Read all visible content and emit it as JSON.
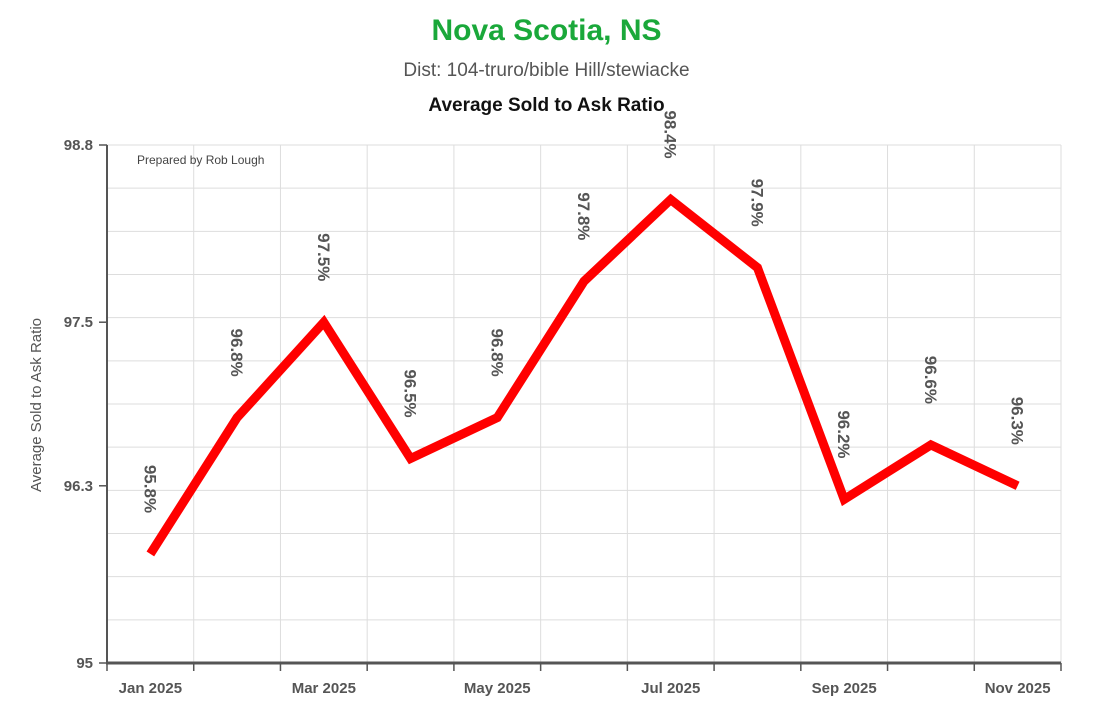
{
  "header": {
    "title": "Nova Scotia, NS",
    "subtitle": "Dist: 104-truro/bible Hill/stewiacke",
    "chart_title": "Average Sold to Ask Ratio",
    "credit": "Prepared by Rob Lough"
  },
  "colors": {
    "title": "#1aa83a",
    "line": "#ff0000",
    "label": "#555555",
    "grid": "#dddddd",
    "axis": "#555555"
  },
  "chart_data": {
    "type": "line",
    "title": "Average Sold to Ask Ratio",
    "xlabel": "",
    "ylabel": "Average Sold to Ask Ratio",
    "ylim": [
      95,
      98.8
    ],
    "y_ticks": [
      "95",
      "96.3",
      "97.5",
      "98.8"
    ],
    "x_tick_labels": [
      "Jan 2025",
      "Mar 2025",
      "May 2025",
      "Jul 2025",
      "Sep 2025",
      "Nov 2025"
    ],
    "grid": true,
    "legend": "none",
    "series": [
      {
        "x": [
          "Jan 2025",
          "Feb 2025",
          "Mar 2025",
          "Apr 2025",
          "May 2025",
          "Jun 2025",
          "Jul 2025",
          "Aug 2025",
          "Sep 2025",
          "Oct 2025",
          "Nov 2025"
        ],
        "values": [
          95.8,
          96.8,
          97.5,
          96.5,
          96.8,
          97.8,
          98.4,
          97.9,
          96.2,
          96.6,
          96.3
        ],
        "labels": [
          "95.8%",
          "96.8%",
          "97.5%",
          "96.5%",
          "96.8%",
          "97.8%",
          "98.4%",
          "97.9%",
          "96.2%",
          "96.6%",
          "96.3%"
        ],
        "color": "#ff0000"
      }
    ]
  }
}
